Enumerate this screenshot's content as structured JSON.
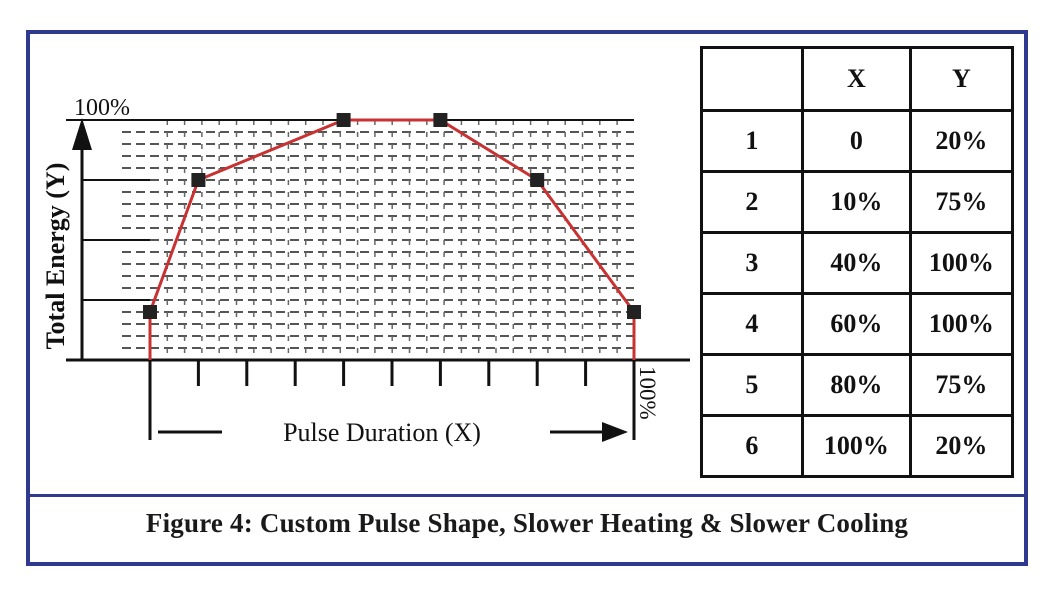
{
  "chart_data": {
    "type": "line",
    "x": [
      0,
      10,
      40,
      60,
      80,
      100
    ],
    "series": [
      {
        "values": [
          20,
          75,
          100,
          100,
          75,
          20
        ]
      }
    ],
    "xlabel": "Pulse Duration (X)",
    "ylabel": "Total Energy (Y)",
    "xmax_label": "100%",
    "ymax_label": "100%",
    "xlim": [
      0,
      100
    ],
    "ylim": [
      0,
      100
    ],
    "grid": true,
    "line_color": "#c83232",
    "marker_color": "#222222"
  },
  "table": {
    "headers": [
      "",
      "X",
      "Y"
    ],
    "rows": [
      [
        "1",
        "0",
        "20%"
      ],
      [
        "2",
        "10%",
        "75%"
      ],
      [
        "3",
        "40%",
        "100%"
      ],
      [
        "4",
        "60%",
        "100%"
      ],
      [
        "5",
        "80%",
        "75%"
      ],
      [
        "6",
        "100%",
        "20%"
      ]
    ]
  },
  "caption": "Figure 4: Custom Pulse Shape, Slower Heating & Slower Cooling",
  "colors": {
    "frame": "#2f3a8f"
  }
}
